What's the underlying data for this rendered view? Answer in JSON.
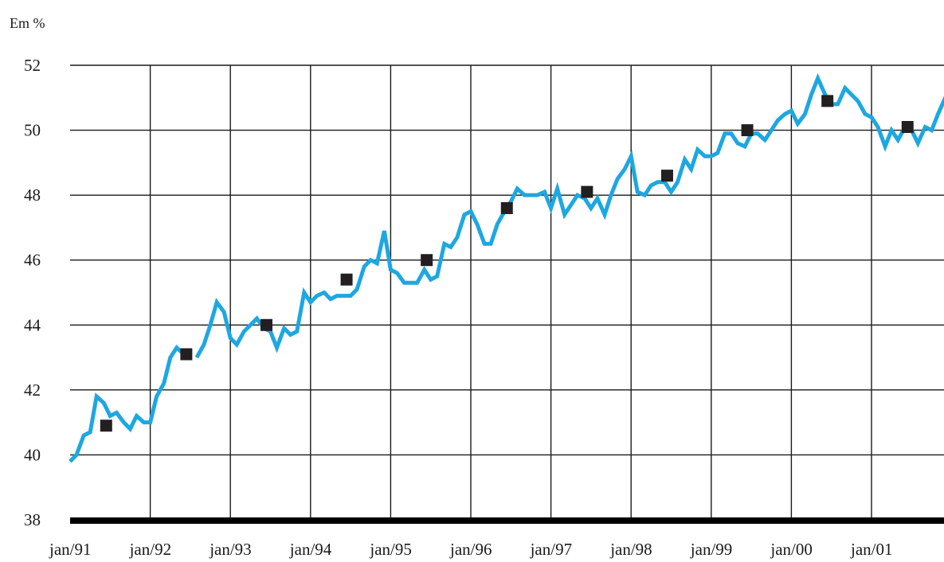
{
  "chart_data": {
    "type": "line",
    "title": "",
    "xlabel": "",
    "ylabel": "Em %",
    "ylim": [
      38,
      52
    ],
    "yticks": [
      38,
      40,
      42,
      44,
      46,
      48,
      50,
      52
    ],
    "xlim": [
      1991.0,
      2001.92
    ],
    "xticks": [
      {
        "x": 1991,
        "label": "jan/91"
      },
      {
        "x": 1992,
        "label": "jan/92"
      },
      {
        "x": 1993,
        "label": "jan/93"
      },
      {
        "x": 1994,
        "label": "jan/94"
      },
      {
        "x": 1995,
        "label": "jan/95"
      },
      {
        "x": 1996,
        "label": "jan/96"
      },
      {
        "x": 1997,
        "label": "jan/97"
      },
      {
        "x": 1998,
        "label": "jan/98"
      },
      {
        "x": 1999,
        "label": "jan/99"
      },
      {
        "x": 2000,
        "label": "jan/00"
      },
      {
        "x": 2001,
        "label": "jan/01"
      }
    ],
    "grid": {
      "vertical": true,
      "horizontal": true
    },
    "colors": {
      "line": "#1ea7e1",
      "marker": "#231f20",
      "grid": "#1a1a1a"
    },
    "series": [
      {
        "style": "line",
        "points": [
          [
            1991.0,
            39.8
          ],
          [
            1991.08,
            40.0
          ],
          [
            1991.17,
            40.6
          ],
          [
            1991.25,
            40.7
          ],
          [
            1991.33,
            41.8
          ],
          [
            1991.42,
            41.6
          ],
          [
            1991.5,
            41.2
          ],
          [
            1991.58,
            41.3
          ],
          [
            1991.67,
            41.0
          ],
          [
            1991.75,
            40.8
          ],
          [
            1991.83,
            41.2
          ],
          [
            1991.92,
            41.0
          ],
          [
            1992.0,
            41.0
          ],
          [
            1992.08,
            41.8
          ],
          [
            1992.17,
            42.2
          ],
          [
            1992.25,
            43.0
          ],
          [
            1992.33,
            43.3
          ],
          [
            1992.42,
            43.1
          ],
          [
            1992.58,
            43.0
          ],
          [
            1992.67,
            43.4
          ],
          [
            1992.75,
            44.0
          ],
          [
            1992.83,
            44.7
          ],
          [
            1992.92,
            44.4
          ],
          [
            1993.0,
            43.6
          ],
          [
            1993.08,
            43.4
          ],
          [
            1993.17,
            43.8
          ],
          [
            1993.25,
            44.0
          ],
          [
            1993.33,
            44.2
          ],
          [
            1993.42,
            43.9
          ],
          [
            1993.5,
            43.8
          ],
          [
            1993.58,
            43.3
          ],
          [
            1993.67,
            43.9
          ],
          [
            1993.75,
            43.7
          ],
          [
            1993.83,
            43.8
          ],
          [
            1993.92,
            45.0
          ],
          [
            1994.0,
            44.7
          ],
          [
            1994.08,
            44.9
          ],
          [
            1994.17,
            45.0
          ],
          [
            1994.25,
            44.8
          ],
          [
            1994.33,
            44.9
          ],
          [
            1994.42,
            44.9
          ],
          [
            1994.5,
            44.9
          ],
          [
            1994.58,
            45.1
          ],
          [
            1994.67,
            45.8
          ],
          [
            1994.75,
            46.0
          ],
          [
            1994.83,
            45.9
          ],
          [
            1994.92,
            46.9
          ],
          [
            1995.0,
            45.7
          ],
          [
            1995.08,
            45.6
          ],
          [
            1995.17,
            45.3
          ],
          [
            1995.25,
            45.3
          ],
          [
            1995.33,
            45.3
          ],
          [
            1995.42,
            45.7
          ],
          [
            1995.5,
            45.4
          ],
          [
            1995.58,
            45.5
          ],
          [
            1995.67,
            46.5
          ],
          [
            1995.75,
            46.4
          ],
          [
            1995.83,
            46.7
          ],
          [
            1995.92,
            47.4
          ],
          [
            1996.0,
            47.5
          ],
          [
            1996.08,
            47.1
          ],
          [
            1996.17,
            46.5
          ],
          [
            1996.25,
            46.5
          ],
          [
            1996.33,
            47.1
          ],
          [
            1996.42,
            47.5
          ],
          [
            1996.5,
            47.8
          ],
          [
            1996.58,
            48.2
          ],
          [
            1996.67,
            48.0
          ],
          [
            1996.75,
            48.0
          ],
          [
            1996.83,
            48.0
          ],
          [
            1996.92,
            48.1
          ],
          [
            1997.0,
            47.6
          ],
          [
            1997.08,
            48.2
          ],
          [
            1997.17,
            47.4
          ],
          [
            1997.25,
            47.7
          ],
          [
            1997.33,
            48.0
          ],
          [
            1997.42,
            47.9
          ],
          [
            1997.5,
            47.6
          ],
          [
            1997.58,
            47.9
          ],
          [
            1997.67,
            47.4
          ],
          [
            1997.75,
            48.0
          ],
          [
            1997.83,
            48.5
          ],
          [
            1997.92,
            48.8
          ],
          [
            1998.0,
            49.2
          ],
          [
            1998.08,
            48.1
          ],
          [
            1998.17,
            48.0
          ],
          [
            1998.25,
            48.3
          ],
          [
            1998.33,
            48.4
          ],
          [
            1998.42,
            48.4
          ],
          [
            1998.5,
            48.1
          ],
          [
            1998.58,
            48.4
          ],
          [
            1998.67,
            49.1
          ],
          [
            1998.75,
            48.8
          ],
          [
            1998.83,
            49.4
          ],
          [
            1998.92,
            49.2
          ],
          [
            1999.0,
            49.2
          ],
          [
            1999.08,
            49.3
          ],
          [
            1999.17,
            49.9
          ],
          [
            1999.25,
            49.9
          ],
          [
            1999.33,
            49.6
          ],
          [
            1999.42,
            49.5
          ],
          [
            1999.5,
            49.9
          ],
          [
            1999.58,
            49.9
          ],
          [
            1999.67,
            49.7
          ],
          [
            1999.75,
            50.0
          ],
          [
            1999.83,
            50.3
          ],
          [
            1999.92,
            50.5
          ],
          [
            2000.0,
            50.6
          ],
          [
            2000.08,
            50.2
          ],
          [
            2000.17,
            50.5
          ],
          [
            2000.25,
            51.1
          ],
          [
            2000.33,
            51.6
          ],
          [
            2000.42,
            51.1
          ],
          [
            2000.5,
            50.8
          ],
          [
            2000.58,
            50.8
          ],
          [
            2000.67,
            51.3
          ],
          [
            2000.75,
            51.1
          ],
          [
            2000.83,
            50.9
          ],
          [
            2000.92,
            50.5
          ],
          [
            2001.0,
            50.4
          ],
          [
            2001.08,
            50.1
          ],
          [
            2001.17,
            49.5
          ],
          [
            2001.25,
            50.0
          ],
          [
            2001.33,
            49.7
          ],
          [
            2001.42,
            50.1
          ],
          [
            2001.5,
            50.0
          ],
          [
            2001.58,
            49.6
          ],
          [
            2001.67,
            50.1
          ],
          [
            2001.75,
            50.0
          ],
          [
            2001.83,
            50.5
          ],
          [
            2001.92,
            51.0
          ],
          [
            2001.97,
            50.4
          ]
        ]
      },
      {
        "style": "markers",
        "points": [
          [
            1991.45,
            40.9
          ],
          [
            1992.45,
            43.1
          ],
          [
            1993.45,
            44.0
          ],
          [
            1994.45,
            45.4
          ],
          [
            1995.45,
            46.0
          ],
          [
            1996.45,
            47.6
          ],
          [
            1997.45,
            48.1
          ],
          [
            1998.45,
            48.6
          ],
          [
            1999.45,
            50.0
          ],
          [
            2000.45,
            50.9
          ],
          [
            2001.45,
            50.1
          ]
        ]
      }
    ]
  }
}
